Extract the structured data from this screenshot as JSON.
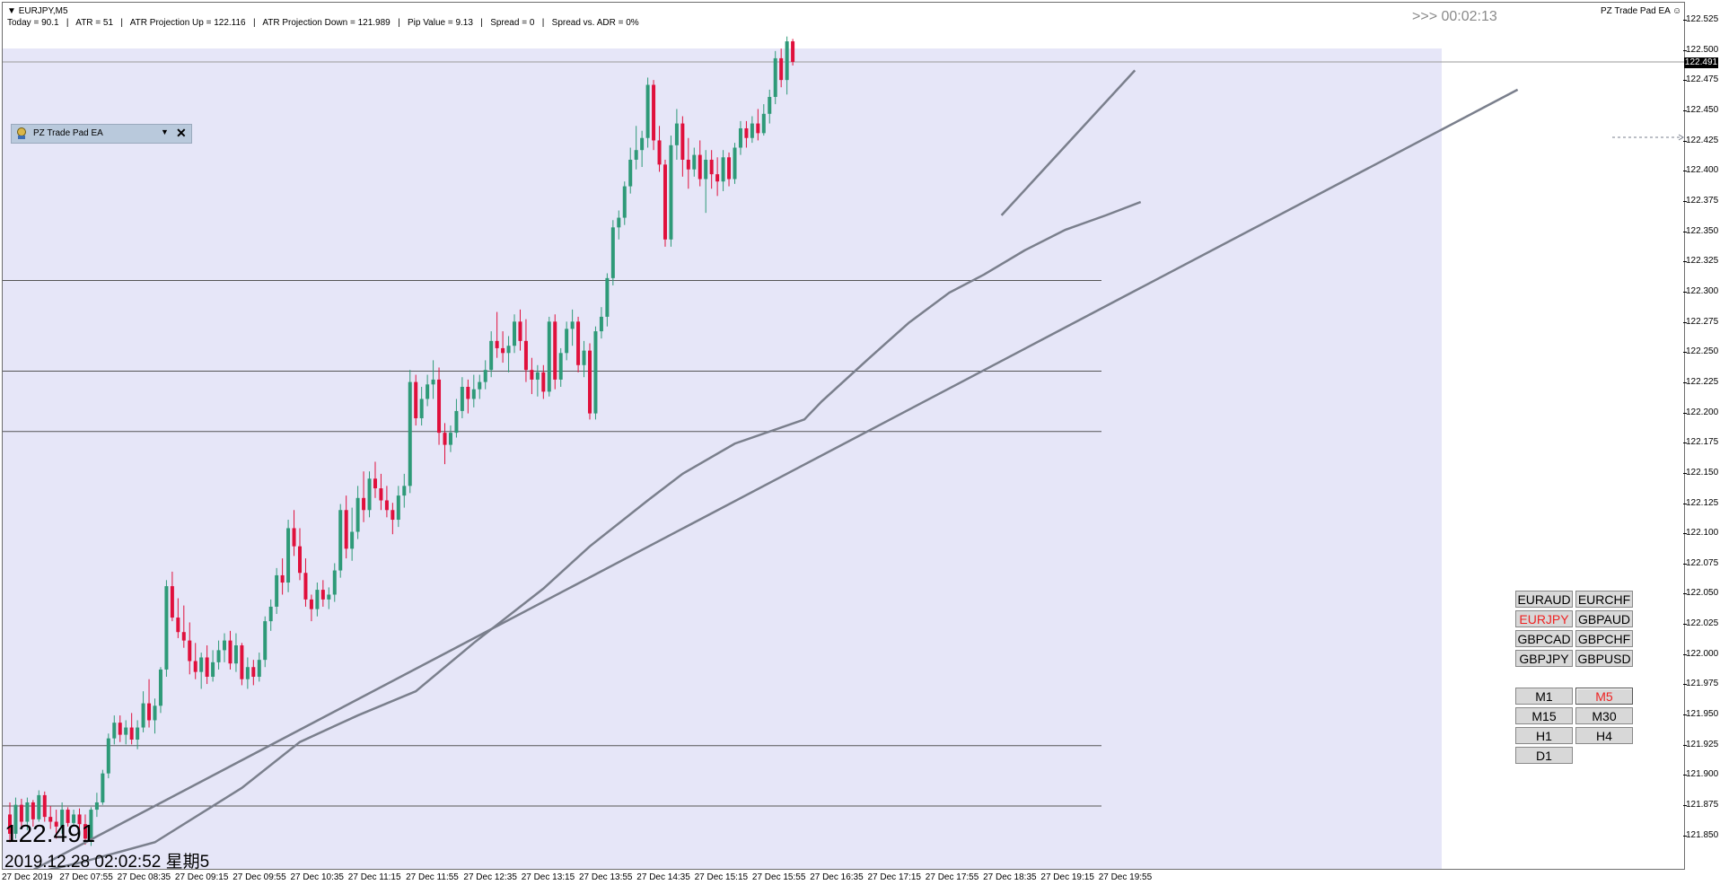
{
  "window": {
    "symbol_label": "EURJPY,M5",
    "info_bar": "Today = 90.1   |   ATR = 51   |   ATR Projection Up = 122.116   |   ATR Projection Down = 121.989   |   Pip Value = 9.13   |   Spread = 0   |   Spread vs. ADR = 0%",
    "countdown": ">>>  00:02:13",
    "ea_name": "PZ Trade Pad EA ☺",
    "big_price": "122.491",
    "datetime": "2019.12.28 02:02:52 星期5"
  },
  "tradepad": {
    "title": "PZ Trade Pad EA",
    "arrow": "▼",
    "close": "✕"
  },
  "price_axis": {
    "ticks": [
      "122.525",
      "122.500",
      "122.475",
      "122.450",
      "122.425",
      "122.400",
      "122.375",
      "122.350",
      "122.325",
      "122.300",
      "122.275",
      "122.250",
      "122.225",
      "122.200",
      "122.175",
      "122.150",
      "122.125",
      "122.100",
      "122.075",
      "122.050",
      "122.025",
      "122.000",
      "121.975",
      "121.950",
      "121.925",
      "121.900",
      "121.875",
      "121.850"
    ],
    "current_price_badge": "122.491"
  },
  "time_axis": {
    "ticks": [
      "27 Dec 2019",
      "27 Dec 07:55",
      "27 Dec 08:35",
      "27 Dec 09:15",
      "27 Dec 09:55",
      "27 Dec 10:35",
      "27 Dec 11:15",
      "27 Dec 11:55",
      "27 Dec 12:35",
      "27 Dec 13:15",
      "27 Dec 13:55",
      "27 Dec 14:35",
      "27 Dec 15:15",
      "27 Dec 15:55",
      "27 Dec 16:35",
      "27 Dec 17:15",
      "27 Dec 17:55",
      "27 Dec 18:35",
      "27 Dec 19:15",
      "27 Dec 19:55"
    ]
  },
  "symbol_buttons": [
    {
      "label": "EURAUD",
      "active": false
    },
    {
      "label": "EURCHF",
      "active": false
    },
    {
      "label": "EURJPY",
      "active": true
    },
    {
      "label": "GBPAUD",
      "active": false
    },
    {
      "label": "GBPCAD",
      "active": false
    },
    {
      "label": "GBPCHF",
      "active": false
    },
    {
      "label": "GBPJPY",
      "active": false
    },
    {
      "label": "GBPUSD",
      "active": false
    }
  ],
  "timeframe_buttons": [
    {
      "label": "M1",
      "active": false
    },
    {
      "label": "M5",
      "active": true
    },
    {
      "label": "M15",
      "active": false
    },
    {
      "label": "M30",
      "active": false
    },
    {
      "label": "H1",
      "active": false
    },
    {
      "label": "H4",
      "active": false
    },
    {
      "label": "D1",
      "active": false
    }
  ],
  "colors": {
    "bull": "#2e9a78",
    "bear": "#e0103c",
    "panel": "#e6e6f8",
    "line": "#7a7f8c"
  },
  "chart_data": {
    "type": "candlestick",
    "ylim": [
      121.823,
      122.54
    ],
    "horizontal_levels": [
      122.491,
      122.31,
      122.235,
      122.185,
      121.925,
      121.875
    ],
    "candles": [
      [
        121.868,
        121.878,
        121.845,
        121.852
      ],
      [
        121.852,
        121.882,
        121.848,
        121.876
      ],
      [
        121.876,
        121.881,
        121.858,
        121.862
      ],
      [
        121.862,
        121.882,
        121.855,
        121.878
      ],
      [
        121.878,
        121.88,
        121.858,
        121.864
      ],
      [
        121.864,
        121.888,
        121.862,
        121.884
      ],
      [
        121.884,
        121.887,
        121.862,
        121.866
      ],
      [
        121.866,
        121.875,
        121.856,
        121.862
      ],
      [
        121.862,
        121.872,
        121.848,
        121.858
      ],
      [
        121.858,
        121.878,
        121.852,
        121.872
      ],
      [
        121.872,
        121.874,
        121.858,
        121.861
      ],
      [
        121.861,
        121.872,
        121.858,
        121.868
      ],
      [
        121.868,
        121.873,
        121.855,
        121.86
      ],
      [
        121.86,
        121.868,
        121.843,
        121.848
      ],
      [
        121.848,
        121.874,
        121.842,
        121.872
      ],
      [
        121.872,
        121.886,
        121.866,
        121.878
      ],
      [
        121.878,
        121.905,
        121.876,
        121.902
      ],
      [
        121.902,
        121.935,
        121.898,
        121.931
      ],
      [
        121.931,
        121.95,
        121.926,
        121.944
      ],
      [
        121.944,
        121.95,
        121.928,
        121.934
      ],
      [
        121.934,
        121.946,
        121.926,
        121.94
      ],
      [
        121.94,
        121.952,
        121.926,
        121.93
      ],
      [
        121.93,
        121.946,
        121.922,
        121.94
      ],
      [
        121.94,
        121.97,
        121.936,
        121.96
      ],
      [
        121.96,
        121.98,
        121.94,
        121.946
      ],
      [
        121.946,
        121.964,
        121.935,
        121.958
      ],
      [
        121.958,
        121.99,
        121.952,
        121.988
      ],
      [
        121.988,
        122.062,
        121.982,
        122.057
      ],
      [
        122.057,
        122.069,
        122.028,
        122.031
      ],
      [
        122.031,
        122.047,
        122.014,
        122.019
      ],
      [
        122.019,
        122.041,
        122.006,
        122.012
      ],
      [
        122.012,
        122.027,
        121.984,
        121.995
      ],
      [
        121.995,
        122.01,
        121.98,
        121.986
      ],
      [
        121.986,
        122.002,
        121.972,
        121.998
      ],
      [
        121.998,
        122.008,
        121.976,
        121.982
      ],
      [
        121.982,
        122.004,
        121.978,
        121.994
      ],
      [
        121.994,
        122.012,
        121.988,
        122.004
      ],
      [
        122.004,
        122.018,
        121.994,
        122.012
      ],
      [
        122.012,
        122.02,
        121.988,
        121.993
      ],
      [
        121.993,
        122.018,
        121.986,
        122.008
      ],
      [
        122.008,
        122.01,
        121.975,
        121.98
      ],
      [
        121.98,
        121.998,
        121.972,
        121.99
      ],
      [
        121.99,
        121.996,
        121.975,
        121.982
      ],
      [
        121.982,
        122.002,
        121.978,
        121.996
      ],
      [
        121.996,
        122.032,
        121.99,
        122.028
      ],
      [
        122.028,
        122.046,
        122.02,
        122.04
      ],
      [
        122.04,
        122.072,
        122.034,
        122.066
      ],
      [
        122.066,
        122.08,
        122.05,
        122.06
      ],
      [
        122.06,
        122.112,
        122.052,
        122.105
      ],
      [
        122.105,
        122.12,
        122.082,
        122.09
      ],
      [
        122.09,
        122.105,
        122.062,
        122.068
      ],
      [
        122.068,
        122.08,
        122.04,
        122.046
      ],
      [
        122.046,
        122.05,
        122.028,
        122.038
      ],
      [
        122.038,
        122.06,
        122.032,
        122.054
      ],
      [
        122.054,
        122.062,
        122.04,
        122.046
      ],
      [
        122.046,
        122.056,
        122.038,
        122.05
      ],
      [
        122.05,
        122.076,
        122.044,
        122.07
      ],
      [
        122.07,
        122.125,
        122.064,
        122.12
      ],
      [
        122.12,
        122.132,
        122.08,
        122.088
      ],
      [
        122.088,
        122.122,
        122.078,
        122.102
      ],
      [
        122.102,
        122.14,
        122.096,
        122.13
      ],
      [
        122.13,
        122.152,
        122.11,
        122.12
      ],
      [
        122.12,
        122.152,
        122.114,
        122.146
      ],
      [
        122.146,
        122.16,
        122.13,
        122.138
      ],
      [
        122.138,
        122.15,
        122.12,
        122.128
      ],
      [
        122.128,
        122.14,
        122.114,
        122.12
      ],
      [
        122.12,
        122.126,
        122.1,
        122.112
      ],
      [
        122.112,
        122.14,
        122.106,
        122.132
      ],
      [
        122.132,
        122.15,
        122.122,
        122.14
      ],
      [
        122.14,
        122.236,
        122.134,
        122.226
      ],
      [
        122.226,
        122.232,
        122.19,
        122.196
      ],
      [
        122.196,
        122.222,
        122.19,
        122.212
      ],
      [
        122.212,
        122.232,
        122.206,
        122.224
      ],
      [
        122.224,
        122.244,
        122.212,
        122.228
      ],
      [
        122.228,
        122.238,
        122.174,
        122.184
      ],
      [
        122.184,
        122.192,
        122.158,
        122.174
      ],
      [
        122.174,
        122.19,
        122.168,
        122.184
      ],
      [
        122.184,
        122.212,
        122.18,
        122.202
      ],
      [
        122.202,
        122.23,
        122.196,
        122.222
      ],
      [
        122.222,
        122.228,
        122.2,
        122.212
      ],
      [
        122.212,
        122.232,
        122.205,
        122.22
      ],
      [
        122.22,
        122.232,
        122.212,
        122.226
      ],
      [
        122.226,
        122.244,
        122.22,
        122.236
      ],
      [
        122.236,
        122.268,
        122.23,
        122.26
      ],
      [
        122.26,
        122.284,
        122.246,
        122.254
      ],
      [
        122.254,
        122.268,
        122.242,
        122.25
      ],
      [
        122.25,
        122.264,
        122.234,
        122.256
      ],
      [
        122.256,
        122.282,
        122.25,
        122.276
      ],
      [
        122.276,
        122.286,
        122.252,
        122.26
      ],
      [
        122.26,
        122.278,
        122.226,
        122.236
      ],
      [
        122.236,
        122.246,
        122.216,
        122.228
      ],
      [
        122.228,
        122.24,
        122.214,
        122.234
      ],
      [
        122.234,
        122.24,
        122.212,
        122.218
      ],
      [
        122.218,
        122.28,
        122.214,
        122.276
      ],
      [
        122.276,
        122.282,
        122.22,
        122.228
      ],
      [
        122.228,
        122.254,
        122.222,
        122.25
      ],
      [
        122.25,
        122.276,
        122.244,
        122.27
      ],
      [
        122.27,
        122.286,
        122.256,
        122.276
      ],
      [
        122.276,
        122.28,
        122.234,
        122.24
      ],
      [
        122.24,
        122.26,
        122.23,
        122.252
      ],
      [
        122.252,
        122.258,
        122.195,
        122.2
      ],
      [
        122.2,
        122.272,
        122.195,
        122.268
      ],
      [
        122.268,
        122.288,
        122.262,
        122.28
      ],
      [
        122.28,
        122.316,
        122.272,
        122.312
      ],
      [
        122.312,
        122.36,
        122.306,
        122.354
      ],
      [
        122.354,
        122.368,
        122.344,
        122.362
      ],
      [
        122.362,
        122.392,
        122.356,
        122.388
      ],
      [
        122.388,
        122.42,
        122.382,
        122.41
      ],
      [
        122.41,
        122.438,
        122.402,
        122.418
      ],
      [
        122.418,
        122.434,
        122.404,
        122.428
      ],
      [
        122.428,
        122.478,
        122.42,
        122.472
      ],
      [
        122.472,
        122.476,
        122.418,
        122.426
      ],
      [
        122.426,
        122.438,
        122.4,
        122.406
      ],
      [
        122.406,
        122.41,
        122.338,
        122.344
      ],
      [
        122.344,
        122.43,
        122.338,
        122.422
      ],
      [
        122.422,
        122.452,
        122.41,
        122.44
      ],
      [
        122.44,
        122.446,
        122.396,
        122.41
      ],
      [
        122.41,
        122.428,
        122.386,
        122.402
      ],
      [
        122.402,
        122.42,
        122.396,
        122.414
      ],
      [
        122.414,
        122.426,
        122.388,
        122.394
      ],
      [
        122.394,
        122.418,
        122.366,
        122.41
      ],
      [
        122.41,
        122.418,
        122.386,
        122.398
      ],
      [
        122.398,
        122.412,
        122.38,
        122.392
      ],
      [
        122.392,
        122.418,
        122.384,
        122.412
      ],
      [
        122.412,
        122.416,
        122.388,
        122.394
      ],
      [
        122.394,
        122.424,
        122.39,
        122.42
      ],
      [
        122.42,
        122.442,
        122.414,
        122.436
      ],
      [
        122.436,
        122.442,
        122.42,
        122.428
      ],
      [
        122.428,
        122.446,
        122.424,
        122.44
      ],
      [
        122.44,
        122.452,
        122.426,
        122.432
      ],
      [
        122.432,
        122.456,
        122.43,
        122.448
      ],
      [
        122.448,
        122.468,
        122.44,
        122.462
      ],
      [
        122.462,
        122.5,
        122.456,
        122.494
      ],
      [
        122.494,
        122.502,
        122.47,
        122.476
      ],
      [
        122.476,
        122.512,
        122.464,
        122.508
      ],
      [
        122.508,
        122.51,
        122.488,
        122.491
      ]
    ],
    "moving_average": [
      [
        0,
        121.815
      ],
      [
        12,
        121.828
      ],
      [
        25,
        121.845
      ],
      [
        40,
        121.89
      ],
      [
        50,
        121.928
      ],
      [
        60,
        121.95
      ],
      [
        70,
        121.97
      ],
      [
        80,
        122.01
      ],
      [
        92,
        122.055
      ],
      [
        100,
        122.09
      ],
      [
        110,
        122.128
      ],
      [
        116,
        122.15
      ],
      [
        125,
        122.175
      ],
      [
        137,
        122.195
      ],
      [
        140,
        122.21
      ],
      [
        148,
        122.245
      ],
      [
        155,
        122.275
      ],
      [
        162,
        122.3
      ],
      [
        168,
        122.315
      ],
      [
        175,
        122.335
      ],
      [
        182,
        122.352
      ],
      [
        189,
        122.364
      ],
      [
        195,
        122.375
      ]
    ],
    "trendlines": [
      {
        "from": [
          0,
          121.812
        ],
        "to": [
          260,
          122.468
        ]
      },
      {
        "from": [
          171,
          122.364
        ],
        "to": [
          194,
          122.484
        ]
      }
    ]
  }
}
